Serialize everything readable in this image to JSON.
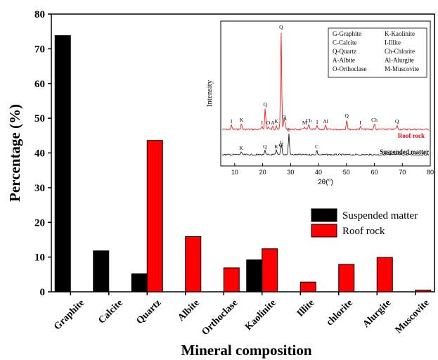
{
  "chart_data": [
    {
      "type": "bar",
      "xlabel": "Mineral composition",
      "ylabel": "Percentage (%)",
      "ylim": [
        0,
        80
      ],
      "yticks": [
        0,
        10,
        20,
        30,
        40,
        50,
        60,
        70,
        80
      ],
      "categories": [
        "Graphite",
        "Calcite",
        "Quartz",
        "Albite",
        "Orthoclase",
        "Kaolinite",
        "Illite",
        "chlorite",
        "Alurgite",
        "Muscovite"
      ],
      "series": [
        {
          "name": "Suspended matter",
          "color": "#000000",
          "values": [
            73.8,
            11.8,
            5.2,
            0,
            0,
            9.2,
            0,
            0,
            0,
            0
          ]
        },
        {
          "name": "Roof rock",
          "color": "#ff0000",
          "values": [
            0,
            0,
            43.6,
            15.9,
            6.9,
            12.4,
            2.8,
            7.9,
            9.9,
            0.5
          ]
        }
      ],
      "legend_position": "right"
    },
    {
      "type": "line",
      "xlabel": "2θ(°)",
      "ylabel": "Intensity",
      "xlim": [
        5,
        80
      ],
      "xticks": [
        10,
        20,
        30,
        40,
        50,
        60,
        70,
        80
      ],
      "series": [
        {
          "name": "Roof rock",
          "color": "#ff0000"
        },
        {
          "name": "Suspended matter",
          "color": "#000000"
        }
      ],
      "legend": [
        [
          "G-Graphite",
          "K-Kaolinite"
        ],
        [
          "C-Calcite",
          "I-Illite"
        ],
        [
          "Q-Quartz",
          "Ch-Chlorite"
        ],
        [
          "A-Albite",
          "Al-Alurgite"
        ],
        [
          "O-Orthoclase",
          "M-Muscovite"
        ]
      ],
      "roof_peaks": [
        {
          "x": 8.8,
          "label": "I"
        },
        {
          "x": 12.4,
          "label": "K"
        },
        {
          "x": 19.8,
          "label": "I"
        },
        {
          "x": 20.9,
          "label": "Q"
        },
        {
          "x": 22.0,
          "label": "O"
        },
        {
          "x": 23.6,
          "label": "A"
        },
        {
          "x": 24.9,
          "label": "K"
        },
        {
          "x": 26.6,
          "label": "Q"
        },
        {
          "x": 27.6,
          "label": "O"
        },
        {
          "x": 28.0,
          "label": "A"
        },
        {
          "x": 35.0,
          "label": "M"
        },
        {
          "x": 36.5,
          "label": "Ch"
        },
        {
          "x": 39.5,
          "label": "I"
        },
        {
          "x": 42.5,
          "label": "Al"
        },
        {
          "x": 50.1,
          "label": "Q"
        },
        {
          "x": 55.0,
          "label": "I"
        },
        {
          "x": 60.0,
          "label": "Ch"
        },
        {
          "x": 68.1,
          "label": "Q"
        }
      ],
      "suspended_peaks": [
        {
          "x": 12.3,
          "label": "K"
        },
        {
          "x": 20.8,
          "label": "Q"
        },
        {
          "x": 24.9,
          "label": "K"
        },
        {
          "x": 26.5,
          "label": "Q"
        },
        {
          "x": 26.8,
          "label": "G"
        },
        {
          "x": 29.4,
          "label": "C"
        },
        {
          "x": 39.4,
          "label": "C"
        }
      ]
    }
  ]
}
